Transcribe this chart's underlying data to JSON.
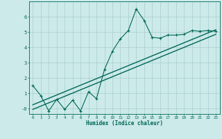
{
  "title": "",
  "xlabel": "Humidex (Indice chaleur)",
  "bg_color": "#cceaea",
  "grid_color": "#aacccc",
  "line_color": "#006655",
  "xlim": [
    -0.5,
    23.5
  ],
  "ylim": [
    -0.35,
    7.0
  ],
  "yticks": [
    0,
    1,
    2,
    3,
    4,
    5,
    6
  ],
  "ytick_labels": [
    "-0",
    "1",
    "2",
    "3",
    "4",
    "5",
    "6"
  ],
  "xticks": [
    0,
    1,
    2,
    3,
    4,
    5,
    6,
    7,
    8,
    9,
    10,
    11,
    12,
    13,
    14,
    15,
    16,
    17,
    18,
    19,
    20,
    21,
    22,
    23
  ],
  "data_x": [
    0,
    1,
    2,
    3,
    4,
    5,
    6,
    7,
    8,
    9,
    10,
    11,
    12,
    13,
    14,
    15,
    16,
    17,
    18,
    19,
    20,
    21,
    22,
    23
  ],
  "data_y": [
    1.5,
    0.85,
    -0.15,
    0.6,
    -0.05,
    0.55,
    -0.15,
    1.1,
    0.65,
    2.55,
    3.75,
    4.55,
    5.1,
    6.5,
    5.75,
    4.65,
    4.6,
    4.8,
    4.8,
    4.85,
    5.1,
    5.05,
    5.1,
    5.05
  ],
  "trend1_x": [
    0,
    23
  ],
  "trend1_y": [
    0.25,
    5.15
  ],
  "trend2_x": [
    0,
    23
  ],
  "trend2_y": [
    -0.05,
    4.85
  ]
}
